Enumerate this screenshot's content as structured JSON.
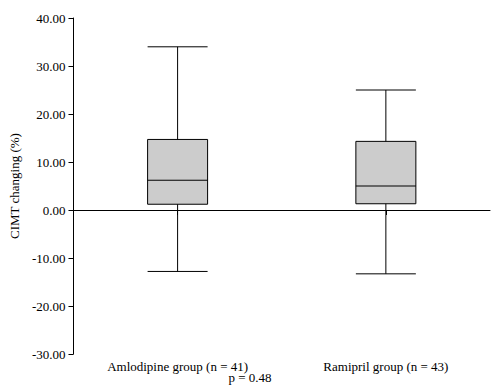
{
  "chart_data": {
    "type": "boxplot",
    "ylabel": "CIMT changing (%)",
    "annotation": "p = 0.48",
    "categories": [
      "Amlodipine group (n = 41)",
      "Ramipril group (n = 43)"
    ],
    "values": [
      [
        -12.8,
        1.2,
        6.2,
        14.7,
        34.0
      ],
      [
        -13.3,
        1.3,
        5.0,
        14.3,
        25.0
      ]
    ],
    "color": "#cccccc",
    "ylim": [
      -30,
      40
    ],
    "yticks": [
      {
        "value": -30,
        "label": "-30.00"
      },
      {
        "value": -20,
        "label": "-20.00"
      },
      {
        "value": -10,
        "label": "-10.00"
      },
      {
        "value": 0,
        "label": "0.00"
      },
      {
        "value": 10,
        "label": "10.00"
      },
      {
        "value": 20,
        "label": "20.00"
      },
      {
        "value": 30,
        "label": "30.00"
      },
      {
        "value": 40,
        "label": "40.00"
      }
    ],
    "grid": false
  }
}
